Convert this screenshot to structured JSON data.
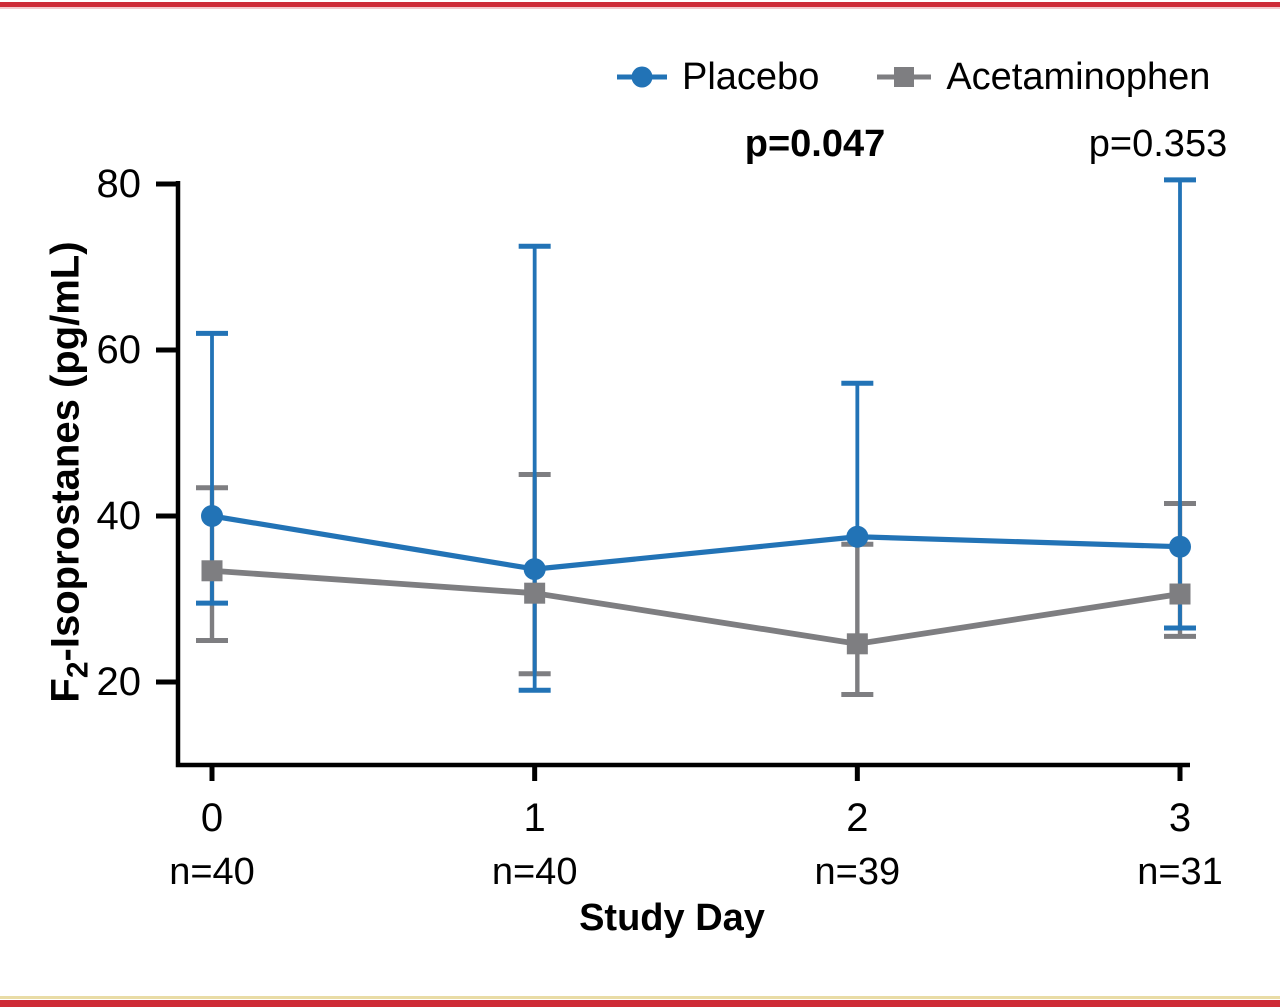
{
  "page": {
    "background": "#ffffff",
    "accent_bar_color": "#ce2b37"
  },
  "legend": [
    {
      "label": "Placebo",
      "color": "#2273b6",
      "marker": "circle"
    },
    {
      "label": "Acetaminophen",
      "color": "#7e7e81",
      "marker": "square"
    }
  ],
  "annotations": [
    {
      "text": "p=0.047",
      "bold": true,
      "above_day": 2
    },
    {
      "text": "p=0.353",
      "bold": false,
      "above_day": 3
    }
  ],
  "chart_data": {
    "type": "line",
    "title": "",
    "xlabel": "Study Day",
    "ylabel": "F2-Isoprostanes (pg/mL)",
    "ylabel_parts": {
      "pre": "F",
      "sub": "2",
      "post": "-Isoprostanes (pg/mL)"
    },
    "x": [
      0,
      1,
      2,
      3
    ],
    "x_tick_labels": [
      "0",
      "1",
      "2",
      "3"
    ],
    "n_labels": [
      "n=40",
      "n=40",
      "n=39",
      "n=31"
    ],
    "yticks": [
      20,
      40,
      60,
      80
    ],
    "ylim": [
      10,
      80.5
    ],
    "grid": false,
    "legend_position": "top-right",
    "axis_color": "#000000",
    "series": [
      {
        "name": "Placebo",
        "marker": "circle",
        "color": "#2273b6",
        "values": [
          40,
          33.6,
          37.5,
          36.3
        ],
        "err_upper": [
          62,
          72.5,
          56,
          80.5
        ],
        "err_lower": [
          29.5,
          19,
          null,
          26.5
        ]
      },
      {
        "name": "Acetaminophen",
        "marker": "square",
        "color": "#7e7e81",
        "values": [
          33.4,
          30.7,
          24.6,
          30.6
        ],
        "err_upper": [
          43.4,
          45,
          36.6,
          41.5
        ],
        "err_lower": [
          25,
          21,
          18.5,
          25.5
        ]
      }
    ]
  }
}
